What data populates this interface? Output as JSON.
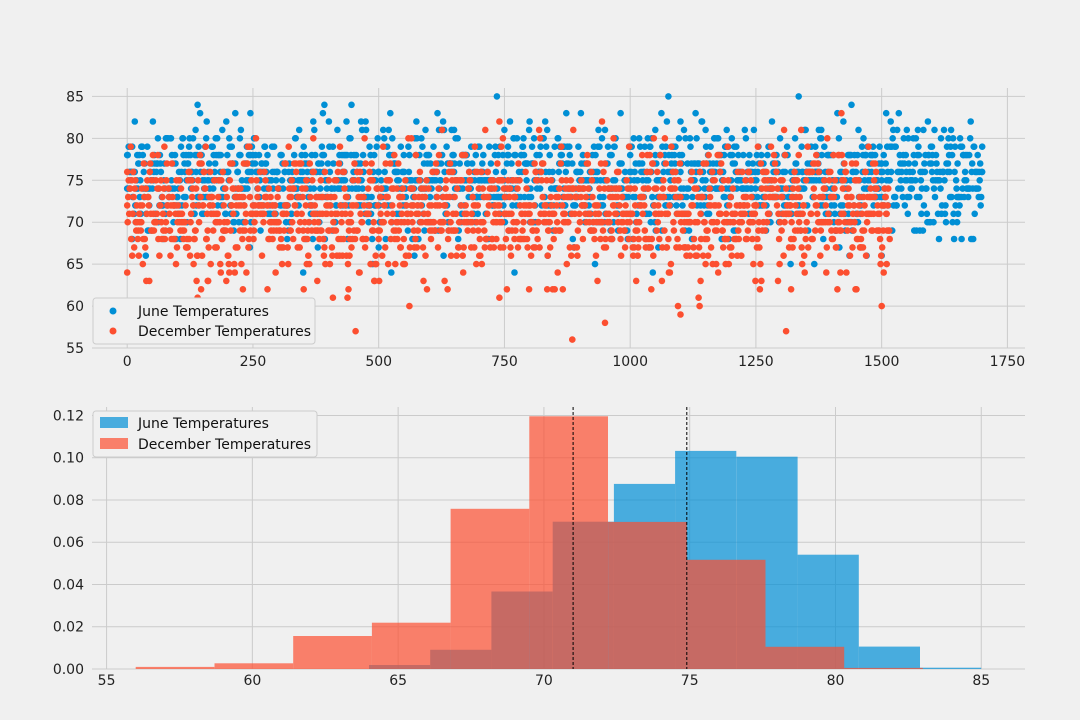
{
  "colors": {
    "june": "#008fd5",
    "december": "#fc4f30",
    "background": "#f0f0f0",
    "grid": "#cbcbcb",
    "mean_line": "#000000"
  },
  "chart_data": [
    {
      "type": "scatter",
      "title": "",
      "xlabel": "",
      "ylabel": "",
      "xlim": [
        -70,
        1785
      ],
      "ylim": [
        55,
        86
      ],
      "xticks": [
        0,
        250,
        500,
        750,
        1000,
        1250,
        1500,
        1750
      ],
      "yticks": [
        55,
        60,
        65,
        70,
        75,
        80,
        85
      ],
      "grid": true,
      "legend_position": "lower-left",
      "series": [
        {
          "name": "June Temperatures",
          "color": "#008fd5",
          "n_points": 1700,
          "mean": 74.9,
          "approx_range": [
            64,
            85
          ],
          "points": [
            [
              0,
              78
            ],
            [
              10,
              79
            ],
            [
              15,
              82
            ],
            [
              140,
              84
            ],
            [
              215,
              83
            ],
            [
              245,
              83
            ],
            [
              465,
              82
            ],
            [
              500,
              76
            ],
            [
              600,
              75
            ],
            [
              650,
              81
            ],
            [
              700,
              79
            ],
            [
              750,
              81
            ],
            [
              800,
              82
            ],
            [
              860,
              79
            ],
            [
              950,
              81
            ],
            [
              1000,
              78
            ],
            [
              1050,
              81
            ],
            [
              1100,
              82
            ],
            [
              1150,
              81
            ],
            [
              1230,
              80
            ],
            [
              1280,
              74
            ],
            [
              1335,
              85
            ],
            [
              1380,
              81
            ],
            [
              1440,
              84
            ],
            [
              1500,
              77
            ],
            [
              1550,
              75
            ],
            [
              1600,
              76
            ],
            [
              1650,
              73
            ],
            [
              1700,
              79
            ],
            [
              1700,
              76
            ],
            [
              1470,
              66
            ],
            [
              1500,
              66
            ],
            [
              1080,
              72
            ],
            [
              770,
              64
            ],
            [
              500,
              67
            ]
          ]
        },
        {
          "name": "December Temperatures",
          "color": "#fc4f30",
          "n_points": 1517,
          "mean": 71.0,
          "approx_range": [
            56,
            83
          ],
          "points": [
            [
              0,
              76
            ],
            [
              0,
              64
            ],
            [
              140,
              61
            ],
            [
              145,
              56
            ],
            [
              160,
              63
            ],
            [
              230,
              62
            ],
            [
              370,
              80
            ],
            [
              440,
              62
            ],
            [
              565,
              80
            ],
            [
              740,
              82
            ],
            [
              740,
              61
            ],
            [
              885,
              56
            ],
            [
              950,
              58
            ],
            [
              1095,
              60
            ],
            [
              1100,
              59
            ],
            [
              1140,
              63
            ],
            [
              1310,
              57
            ],
            [
              1320,
              62
            ],
            [
              1420,
              83
            ],
            [
              1450,
              62
            ],
            [
              1500,
              60
            ],
            [
              1510,
              65
            ]
          ]
        }
      ]
    },
    {
      "type": "histogram",
      "title": "",
      "xlabel": "",
      "ylabel": "",
      "density": true,
      "xlim": [
        54.5,
        86.5
      ],
      "ylim": [
        0,
        0.124
      ],
      "xticks": [
        55,
        60,
        65,
        70,
        75,
        80,
        85
      ],
      "yticks": [
        0.0,
        0.02,
        0.04,
        0.06,
        0.08,
        0.1,
        0.12
      ],
      "grid": true,
      "legend_position": "top-left",
      "series": [
        {
          "name": "June Temperatures",
          "color": "#008fd5",
          "alpha": 0.7,
          "bin_edges": [
            64,
            66.1,
            68.2,
            70.3,
            72.4,
            74.5,
            76.6,
            78.7,
            80.8,
            82.9,
            85
          ],
          "values": [
            0.0019,
            0.0091,
            0.0367,
            0.0697,
            0.0876,
            0.1032,
            0.1005,
            0.0541,
            0.0106,
            0.0006
          ]
        },
        {
          "name": "December Temperatures",
          "color": "#fc4f30",
          "alpha": 0.7,
          "bin_edges": [
            56,
            58.7,
            61.4,
            64.1,
            66.8,
            69.5,
            72.2,
            74.9,
            77.6,
            80.3,
            83
          ],
          "values": [
            0.001,
            0.0027,
            0.0156,
            0.0219,
            0.0758,
            0.1196,
            0.0696,
            0.0517,
            0.0105,
            0.0005
          ]
        }
      ],
      "vlines": [
        {
          "x": 71.0,
          "style": "dashed",
          "color": "#000000"
        },
        {
          "x": 74.9,
          "style": "dashed",
          "color": "#000000"
        }
      ]
    }
  ]
}
